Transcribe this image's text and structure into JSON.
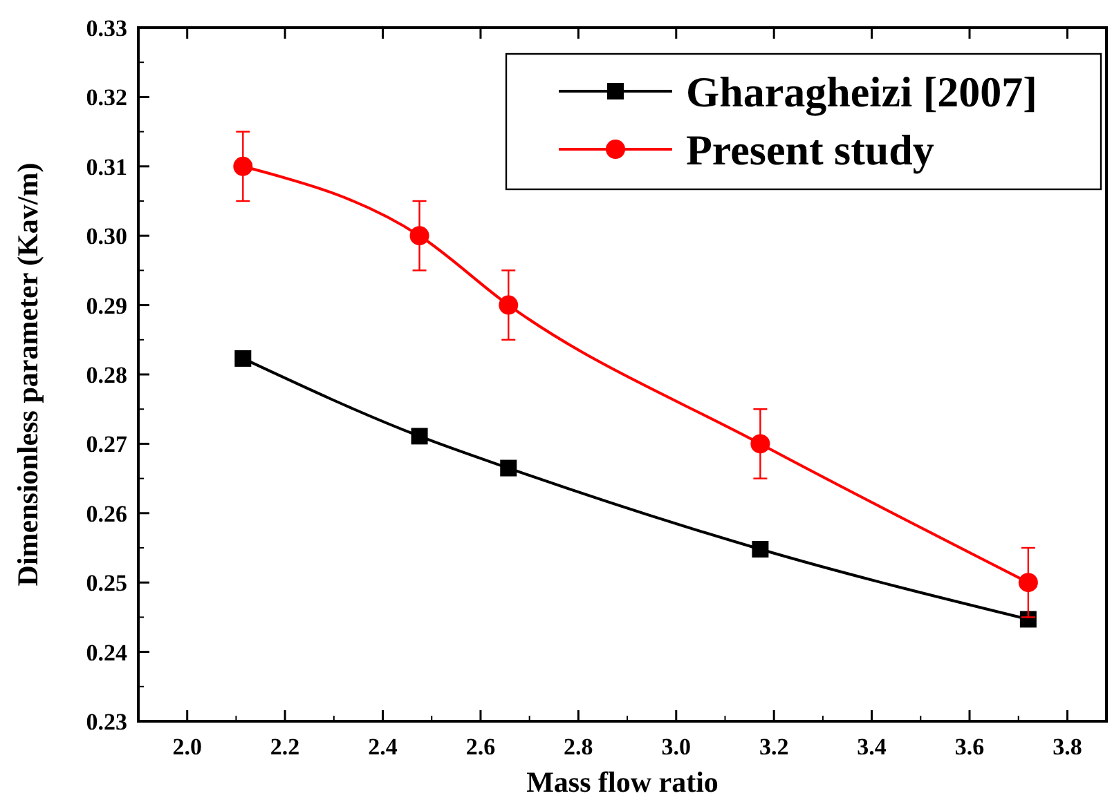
{
  "chart_data": {
    "type": "line",
    "xlabel": "Mass flow ratio",
    "ylabel": "Dimensionless parameter (Kav/m)",
    "xlim": [
      1.9,
      3.88
    ],
    "xticks": [
      {
        "value": 2.0,
        "label": "2.0"
      },
      {
        "value": 2.2,
        "label": "2.2"
      },
      {
        "value": 2.4,
        "label": "2.4"
      },
      {
        "value": 2.6,
        "label": "2.6"
      },
      {
        "value": 2.8,
        "label": "2.8"
      },
      {
        "value": 3.0,
        "label": "3.0"
      },
      {
        "value": 3.2,
        "label": "3.2"
      },
      {
        "value": 3.4,
        "label": "3.4"
      },
      {
        "value": 3.6,
        "label": "3.6"
      },
      {
        "value": 3.8,
        "label": "3.8"
      }
    ],
    "ylim": [
      0.23,
      0.33
    ],
    "yticks": [
      0.23,
      0.24,
      0.25,
      0.26,
      0.27,
      0.28,
      0.29,
      {
        "value": 0.3,
        "label": "0.30"
      },
      0.31,
      0.32,
      0.33
    ],
    "grid": false,
    "legend": "top right",
    "series": [
      {
        "name": "Gharagheizi [2007]",
        "color": "#000000",
        "marker": "square",
        "x": [
          2.114,
          2.475,
          2.657,
          3.172,
          3.72
        ],
        "values": [
          0.2823,
          0.2711,
          0.2665,
          0.2548,
          0.2447
        ]
      },
      {
        "name": "Present study",
        "color": "#ff0000",
        "marker": "circle",
        "x": [
          2.114,
          2.475,
          2.657,
          3.172,
          3.72
        ],
        "values": [
          0.31,
          0.3,
          0.29,
          0.27,
          0.25
        ],
        "errors": [
          0.005,
          0.005,
          0.005,
          0.005,
          0.005
        ]
      }
    ]
  }
}
